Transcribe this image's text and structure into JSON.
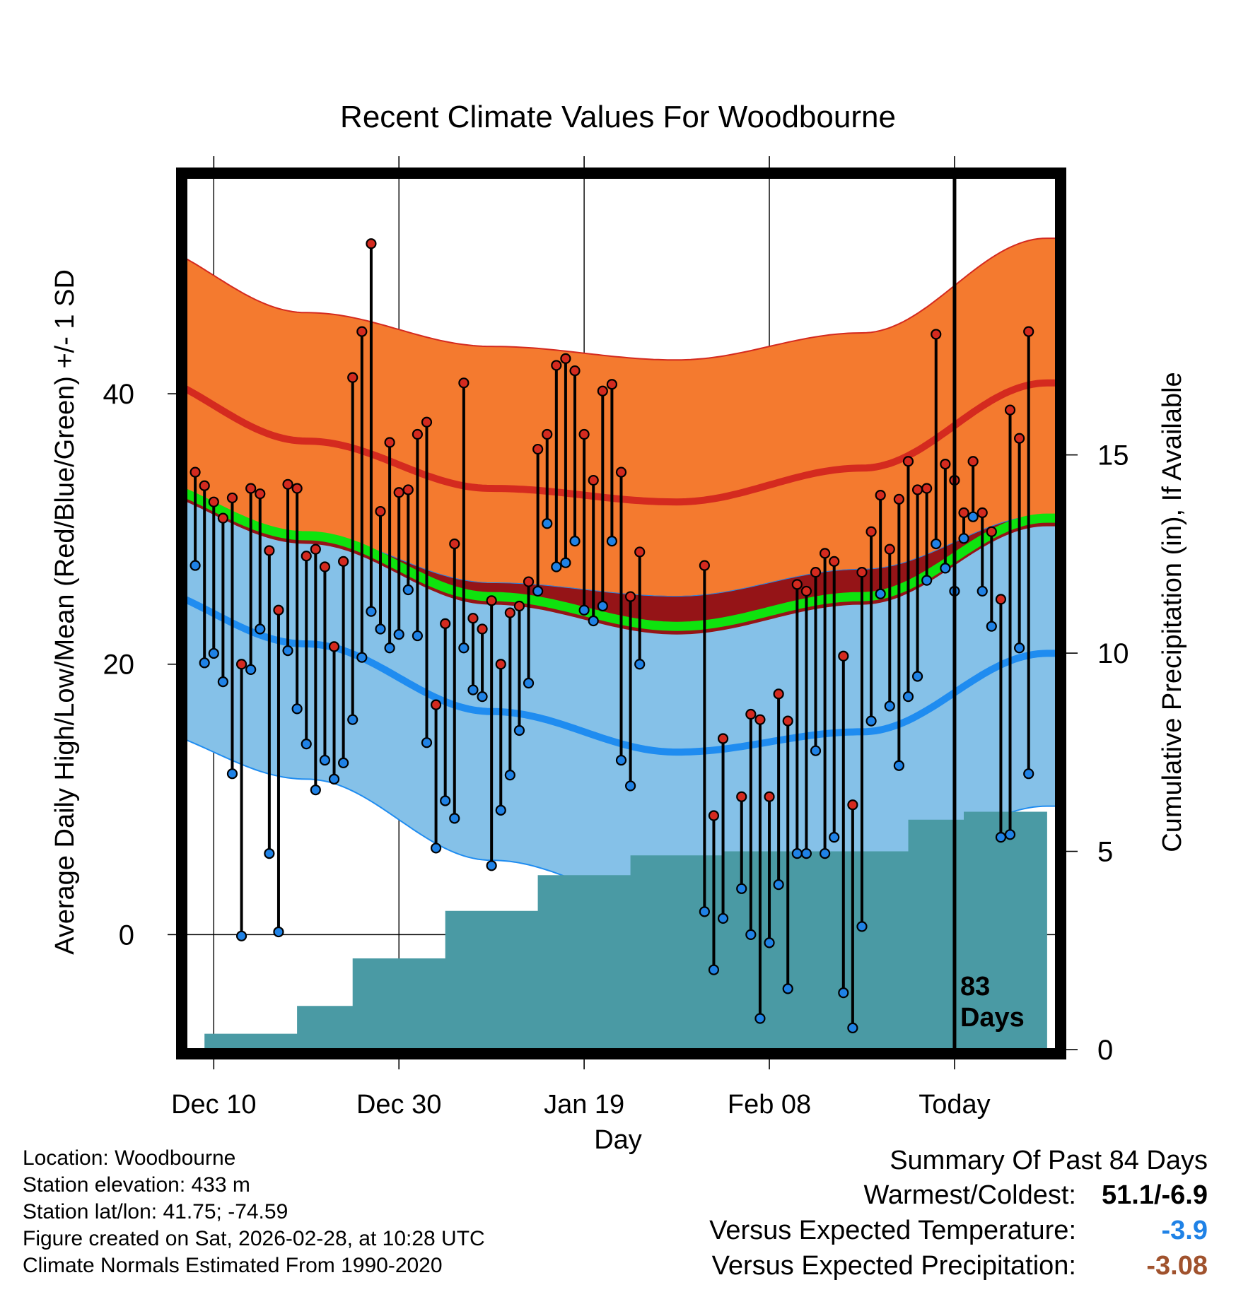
{
  "chart_data": {
    "type": "line",
    "title": "Recent Climate Values For Woodbourne",
    "xlabel": "Day",
    "ylabel": "Average Daily High/Low/Mean (Red/Blue/Green) +/- 1 SD",
    "y2label": "Cumulative Precipitation (in), If Available",
    "x_range_days": [
      -84,
      10
    ],
    "x_ticks": [
      {
        "day": -81,
        "label": "Dec 10"
      },
      {
        "day": -61,
        "label": "Dec 30"
      },
      {
        "day": -41,
        "label": "Jan 19"
      },
      {
        "day": -21,
        "label": "Feb 08"
      },
      {
        "day": -1,
        "label": "Today"
      }
    ],
    "ylim": [
      -8.5,
      56
    ],
    "y_ticks": [
      0,
      20,
      40
    ],
    "y2lim": [
      0,
      22
    ],
    "y2_ticks": [
      0,
      5,
      10,
      15
    ],
    "today_label": "83\nDays",
    "normal_high": {
      "day": [
        -91,
        -71,
        -51,
        -31,
        -11,
        9
      ],
      "mean": [
        41.8,
        36.5,
        33.0,
        32.0,
        34.5,
        40.8
      ],
      "upper": [
        51.5,
        46.0,
        43.5,
        42.5,
        44.5,
        51.5
      ],
      "lower": [
        34.0,
        29.5,
        26.0,
        25.0,
        27.0,
        31.0
      ]
    },
    "normal_low": {
      "day": [
        -91,
        -71,
        -51,
        -31,
        -11,
        9
      ],
      "mean": [
        26.0,
        21.5,
        16.5,
        13.5,
        15.0,
        20.8
      ],
      "upper": [
        34.0,
        29.5,
        26.0,
        25.0,
        27.0,
        31.0
      ],
      "lower": [
        15.5,
        11.5,
        5.5,
        2.0,
        4.5,
        9.5
      ]
    },
    "normal_mean": {
      "day": [
        -91,
        -71,
        -51,
        -31,
        -11,
        9
      ],
      "values": [
        33.8,
        29.5,
        25.0,
        22.8,
        25.0,
        30.8
      ]
    },
    "series": [
      {
        "name": "Daily High",
        "color": "#d42a1f",
        "values": [
          34.2,
          33.2,
          32.0,
          30.8,
          32.3,
          20.0,
          33.0,
          32.6,
          28.4,
          24.0,
          33.3,
          33.0,
          28.0,
          28.5,
          27.2,
          21.3,
          27.6,
          41.2,
          44.6,
          51.1,
          31.3,
          36.4,
          32.7,
          32.9,
          37.0,
          37.9,
          17.0,
          23.0,
          28.9,
          40.8,
          23.4,
          22.6,
          24.7,
          20.0,
          23.8,
          24.3,
          26.1,
          35.9,
          37.0,
          42.1,
          42.6,
          41.7,
          37.0,
          33.6,
          40.2,
          40.7,
          34.2,
          25.0,
          28.3,
          null,
          null,
          null,
          null,
          null,
          null,
          27.3,
          8.8,
          14.5,
          null,
          10.2,
          16.3,
          15.9,
          10.2,
          17.8,
          15.8,
          25.9,
          25.4,
          26.8,
          28.2,
          27.6,
          20.6,
          9.6,
          26.8,
          29.8,
          32.5,
          28.5,
          32.2,
          35.0,
          32.9,
          33.0,
          44.4,
          34.8,
          33.6,
          31.2,
          35.0,
          31.2,
          29.8,
          24.8,
          38.8,
          36.7,
          44.6
        ]
      },
      {
        "name": "Daily Low",
        "color": "#1f82e6",
        "values": [
          27.3,
          20.1,
          20.8,
          18.7,
          11.9,
          -0.1,
          19.6,
          22.6,
          6.0,
          0.2,
          21.0,
          16.7,
          14.1,
          10.7,
          12.9,
          11.5,
          12.7,
          15.9,
          20.5,
          23.9,
          22.6,
          21.2,
          22.2,
          25.5,
          22.1,
          14.2,
          6.4,
          9.9,
          8.6,
          21.2,
          18.1,
          17.6,
          5.1,
          9.2,
          11.8,
          15.1,
          18.6,
          25.4,
          30.4,
          27.2,
          27.5,
          29.1,
          24.0,
          23.2,
          24.3,
          29.1,
          12.9,
          11.0,
          20.0,
          null,
          null,
          null,
          null,
          null,
          null,
          1.7,
          -2.6,
          1.2,
          null,
          3.4,
          0.0,
          -6.2,
          -0.6,
          3.7,
          -4.0,
          6.0,
          6.0,
          13.6,
          6.0,
          7.2,
          -4.3,
          -6.9,
          0.6,
          15.8,
          25.2,
          16.9,
          12.5,
          17.6,
          19.1,
          26.2,
          28.9,
          27.1,
          25.4,
          29.3,
          30.9,
          25.4,
          22.8,
          7.2,
          7.4,
          21.2,
          11.9
        ]
      },
      {
        "name": "Cumulative Precipitation",
        "color": "#4a9aa4",
        "days": [
          -82,
          -78,
          -72,
          -66,
          -56,
          -46,
          -36,
          -26,
          -16,
          -6,
          0,
          9
        ],
        "values": [
          0.4,
          0.4,
          1.1,
          2.3,
          3.5,
          4.4,
          4.9,
          5.0,
          5.0,
          5.8,
          6.0,
          6.0
        ]
      }
    ]
  },
  "meta": {
    "location": "Location: Woodbourne",
    "elevation": "Station elevation: 433 m",
    "latlon": "Station lat/lon: 41.75; -74.59",
    "created": "Figure created on Sat, 2026-02-28, at 10:28 UTC",
    "normals": "Climate Normals Estimated From 1990-2020"
  },
  "summary": {
    "title": "Summary Of Past 84 Days",
    "warmest_label": "Warmest/Coldest:",
    "warmest_value": "51.1/-6.9",
    "temp_label": "Versus Expected Temperature:",
    "temp_value": "-3.9",
    "temp_color": "#1f82e6",
    "precip_label": "Versus Expected Precipitation:",
    "precip_value": "-3.08",
    "precip_color": "#a0522d"
  },
  "colors": {
    "high_band": "#f47a2f",
    "high_line": "#d42a1f",
    "overlap_band": "#951417",
    "low_band": "#85c1e8",
    "low_line": "#1f8cf0",
    "mean_line": "#0ee30e",
    "precip_fill": "#4a9aa4"
  }
}
